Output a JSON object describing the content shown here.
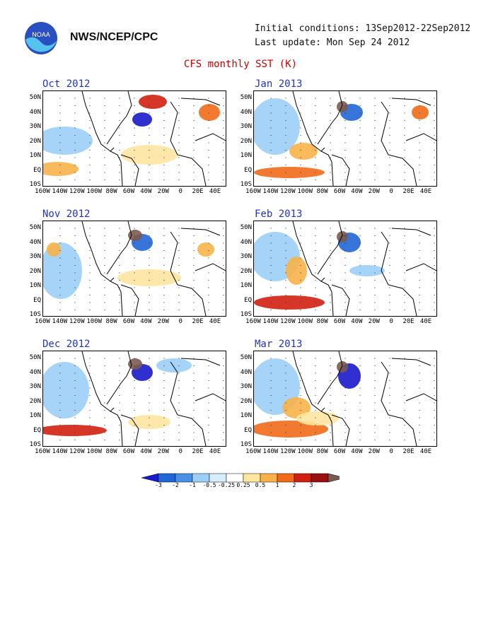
{
  "header": {
    "org": "NWS/NCEP/CPC",
    "initial": "Initial conditions: 13Sep2012-22Sep2012",
    "update": "Last update: Mon Sep 24 2012",
    "title": "CFS monthly SST (K)",
    "logo_text": "NOAA"
  },
  "panels": [
    {
      "title": "Oct 2012"
    },
    {
      "title": "Jan 2013"
    },
    {
      "title": "Nov 2012"
    },
    {
      "title": "Feb 2013"
    },
    {
      "title": "Dec 2012"
    },
    {
      "title": "Mar 2013"
    }
  ],
  "lat_ticks": [
    "50N",
    "40N",
    "30N",
    "20N",
    "10N",
    "EQ",
    "10S"
  ],
  "lon_ticks": [
    "160W",
    "140W",
    "120W",
    "100W",
    "80W",
    "60W",
    "40W",
    "20W",
    "0",
    "20E",
    "40E"
  ],
  "colorbar": {
    "labels": [
      "-3",
      "-2",
      "-1",
      "-0.5",
      "-0.25",
      "0.25",
      "0.5",
      "1",
      "2",
      "3"
    ],
    "colors": [
      "#1a1acc",
      "#2266d6",
      "#4a90e6",
      "#9ccff7",
      "#d6eefc",
      "#ffffff",
      "#fde6a0",
      "#f8b24a",
      "#f06a1a",
      "#d02010",
      "#9a1010",
      "#7a5a50"
    ]
  }
}
